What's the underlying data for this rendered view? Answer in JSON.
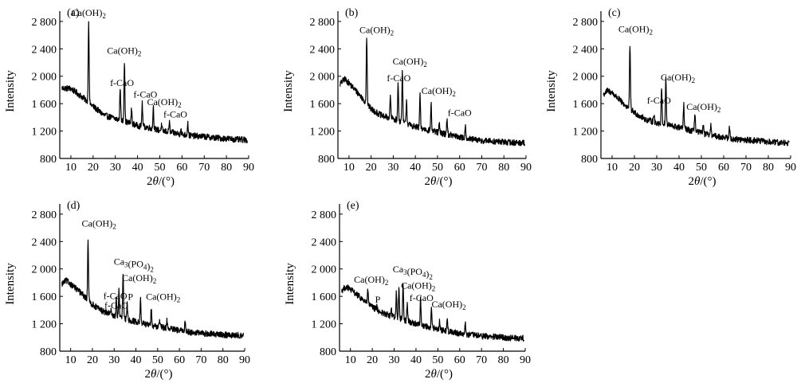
{
  "chart_data": [
    {
      "type": "line",
      "panel_label": "(a)",
      "xlabel_prefix": "2",
      "xlabel_theta": "θ",
      "xlabel_suffix": "/(°)",
      "ylabel": "Intensity",
      "xlim": [
        5,
        90
      ],
      "ylim": [
        800,
        2950
      ],
      "xticks": [
        10,
        20,
        30,
        40,
        50,
        60,
        70,
        80,
        90
      ],
      "yticks": [
        800,
        1200,
        1600,
        2000,
        2400,
        2800
      ],
      "ytick_labels": [
        "800",
        "1 200",
        "1 600",
        "2 000",
        "2 400",
        "2 800"
      ],
      "background": [
        [
          5,
          1830
        ],
        [
          10,
          1820
        ],
        [
          15,
          1700
        ],
        [
          20,
          1560
        ],
        [
          25,
          1430
        ],
        [
          30,
          1380
        ],
        [
          35,
          1330
        ],
        [
          40,
          1280
        ],
        [
          45,
          1250
        ],
        [
          50,
          1210
        ],
        [
          55,
          1180
        ],
        [
          60,
          1150
        ],
        [
          65,
          1130
        ],
        [
          70,
          1120
        ],
        [
          75,
          1100
        ],
        [
          80,
          1090
        ],
        [
          85,
          1075
        ],
        [
          90,
          1070
        ]
      ],
      "peaks": [
        [
          18.0,
          2820
        ],
        [
          28.7,
          1400
        ],
        [
          32.2,
          1850
        ],
        [
          34.1,
          2230
        ],
        [
          37.3,
          1520
        ],
        [
          42.1,
          1600
        ],
        [
          47.1,
          1560
        ],
        [
          50.8,
          1280
        ],
        [
          54.3,
          1330
        ],
        [
          59.5,
          1230
        ],
        [
          62.6,
          1330
        ]
      ],
      "annotations": [
        {
          "text": "Ca(OH)",
          "sub": "2",
          "x": 18.0,
          "y": 2880
        },
        {
          "text": "Ca(OH)",
          "sub": "2",
          "x": 34.0,
          "y": 2330
        },
        {
          "text": "f-CaO",
          "sub": "",
          "x": 33.0,
          "y": 1860
        },
        {
          "text": "f-CaO",
          "sub": "",
          "x": 43.5,
          "y": 1690
        },
        {
          "text": "Ca(OH)",
          "sub": "2",
          "x": 52.0,
          "y": 1580
        },
        {
          "text": "f-CaO",
          "sub": "",
          "x": 57.0,
          "y": 1400
        }
      ]
    },
    {
      "type": "line",
      "panel_label": "(b)",
      "xlabel_prefix": "2",
      "xlabel_theta": "θ",
      "xlabel_suffix": "/(°)",
      "ylabel": "Intensity",
      "xlim": [
        5,
        90
      ],
      "ylim": [
        800,
        2950
      ],
      "xticks": [
        10,
        20,
        30,
        40,
        50,
        60,
        70,
        80,
        90
      ],
      "yticks": [
        800,
        1200,
        1600,
        2000,
        2400,
        2800
      ],
      "ytick_labels": [
        "800",
        "1 200",
        "1 600",
        "2 000",
        "2 400",
        "2 800"
      ],
      "background": [
        [
          5,
          1850
        ],
        [
          8,
          1960
        ],
        [
          10,
          1900
        ],
        [
          15,
          1720
        ],
        [
          20,
          1520
        ],
        [
          25,
          1420
        ],
        [
          30,
          1380
        ],
        [
          35,
          1320
        ],
        [
          40,
          1260
        ],
        [
          45,
          1220
        ],
        [
          50,
          1180
        ],
        [
          55,
          1150
        ],
        [
          60,
          1110
        ],
        [
          65,
          1080
        ],
        [
          70,
          1060
        ],
        [
          75,
          1050
        ],
        [
          80,
          1040
        ],
        [
          85,
          1030
        ],
        [
          90,
          1030
        ]
      ],
      "peaks": [
        [
          18.0,
          2580
        ],
        [
          28.7,
          1700
        ],
        [
          32.2,
          1900
        ],
        [
          34.1,
          2060
        ],
        [
          36.0,
          1650
        ],
        [
          42.1,
          1720
        ],
        [
          47.1,
          1600
        ],
        [
          50.8,
          1300
        ],
        [
          54.3,
          1380
        ],
        [
          62.6,
          1300
        ]
      ],
      "annotations": [
        {
          "text": "Ca(OH)",
          "sub": "2",
          "x": 22.5,
          "y": 2630
        },
        {
          "text": "Ca(OH)",
          "sub": "2",
          "x": 37.5,
          "y": 2170
        },
        {
          "text": "f-CaO",
          "sub": "",
          "x": 32.5,
          "y": 1930
        },
        {
          "text": "Ca(OH)",
          "sub": "2",
          "x": 50.5,
          "y": 1740
        },
        {
          "text": "f-CaO",
          "sub": "",
          "x": 60.0,
          "y": 1420
        }
      ]
    },
    {
      "type": "line",
      "panel_label": "(c)",
      "xlabel_prefix": "2",
      "xlabel_theta": "θ",
      "xlabel_suffix": "/(°)",
      "ylabel": "Intensity",
      "xlim": [
        5,
        90
      ],
      "ylim": [
        800,
        2950
      ],
      "xticks": [
        10,
        20,
        30,
        40,
        50,
        60,
        70,
        80,
        90
      ],
      "yticks": [
        800,
        1200,
        1600,
        2000,
        2400,
        2800
      ],
      "ytick_labels": [
        "800",
        "1 200",
        "1 600",
        "2 000",
        "2 400",
        "2 800"
      ],
      "background": [
        [
          5,
          1700
        ],
        [
          8,
          1790
        ],
        [
          10,
          1760
        ],
        [
          15,
          1600
        ],
        [
          20,
          1470
        ],
        [
          25,
          1370
        ],
        [
          30,
          1320
        ],
        [
          35,
          1290
        ],
        [
          40,
          1250
        ],
        [
          45,
          1210
        ],
        [
          50,
          1170
        ],
        [
          55,
          1130
        ],
        [
          60,
          1110
        ],
        [
          65,
          1080
        ],
        [
          70,
          1070
        ],
        [
          75,
          1060
        ],
        [
          80,
          1040
        ],
        [
          85,
          1030
        ],
        [
          90,
          1030
        ]
      ],
      "peaks": [
        [
          18.0,
          2460
        ],
        [
          28.7,
          1450
        ],
        [
          32.2,
          1850
        ],
        [
          34.1,
          1990
        ],
        [
          42.1,
          1580
        ],
        [
          47.1,
          1480
        ],
        [
          50.8,
          1300
        ],
        [
          54.3,
          1280
        ],
        [
          62.6,
          1250
        ]
      ],
      "annotations": [
        {
          "text": "Ca(OH)",
          "sub": "2",
          "x": 20.5,
          "y": 2640
        },
        {
          "text": "f-CaO",
          "sub": "",
          "x": 31.0,
          "y": 1600
        },
        {
          "text": "Ca(OH)",
          "sub": "2",
          "x": 39.5,
          "y": 1940
        },
        {
          "text": "Ca(OH)",
          "sub": "2",
          "x": 51.0,
          "y": 1510
        }
      ]
    },
    {
      "type": "line",
      "panel_label": "(d)",
      "xlabel_prefix": "2",
      "xlabel_theta": "θ",
      "xlabel_suffix": "/(°)",
      "ylabel": "Intensity",
      "xlim": [
        5,
        90
      ],
      "ylim": [
        800,
        2950
      ],
      "xticks": [
        10,
        20,
        30,
        40,
        50,
        60,
        70,
        80,
        90
      ],
      "yticks": [
        800,
        1200,
        1600,
        2000,
        2400,
        2800
      ],
      "ytick_labels": [
        "800",
        "1 200",
        "1 600",
        "2 000",
        "2 400",
        "2 800"
      ],
      "background": [
        [
          5,
          1760
        ],
        [
          8,
          1830
        ],
        [
          10,
          1780
        ],
        [
          15,
          1640
        ],
        [
          20,
          1480
        ],
        [
          25,
          1380
        ],
        [
          30,
          1320
        ],
        [
          35,
          1270
        ],
        [
          40,
          1230
        ],
        [
          45,
          1190
        ],
        [
          50,
          1160
        ],
        [
          55,
          1130
        ],
        [
          60,
          1100
        ],
        [
          65,
          1080
        ],
        [
          70,
          1060
        ],
        [
          75,
          1050
        ],
        [
          80,
          1040
        ],
        [
          85,
          1030
        ],
        [
          90,
          1030
        ]
      ],
      "peaks": [
        [
          18.0,
          2450
        ],
        [
          28.7,
          1400
        ],
        [
          31.0,
          1550
        ],
        [
          32.2,
          1700
        ],
        [
          34.1,
          1940
        ],
        [
          36.0,
          1480
        ],
        [
          42.1,
          1550
        ],
        [
          47.1,
          1450
        ],
        [
          50.8,
          1250
        ],
        [
          54.3,
          1260
        ],
        [
          62.6,
          1230
        ]
      ],
      "annotations": [
        {
          "text": "Ca(OH)",
          "sub": "2",
          "x": 23.0,
          "y": 2620
        },
        {
          "text": "Ca",
          "sub": "3",
          "text2": "(PO",
          "sub2": "4",
          "text3": ")",
          "sub3": "2",
          "x": 39.0,
          "y": 2060
        },
        {
          "text": "Ca(OH)",
          "sub": "2",
          "x": 41.5,
          "y": 1820
        },
        {
          "text": "P",
          "sub": "",
          "x": 37.5,
          "y": 1550
        },
        {
          "text": "f-CaO",
          "sub": "",
          "x": 30.5,
          "y": 1560
        },
        {
          "text": "f-CaO",
          "sub": "",
          "x": 31.0,
          "y": 1420
        },
        {
          "text": "Ca(OH)",
          "sub": "2",
          "x": 52.5,
          "y": 1550
        }
      ]
    },
    {
      "type": "line",
      "panel_label": "(e)",
      "xlabel_prefix": "2",
      "xlabel_theta": "θ",
      "xlabel_suffix": "/(°)",
      "ylabel": "Intensity",
      "xlim": [
        5,
        90
      ],
      "ylim": [
        800,
        2950
      ],
      "xticks": [
        10,
        20,
        30,
        40,
        50,
        60,
        70,
        80,
        90
      ],
      "yticks": [
        800,
        1200,
        1600,
        2000,
        2400,
        2800
      ],
      "ytick_labels": [
        "800",
        "1 200",
        "1 600",
        "2 000",
        "2 400",
        "2 800"
      ],
      "background": [
        [
          5,
          1660
        ],
        [
          8,
          1740
        ],
        [
          10,
          1700
        ],
        [
          15,
          1570
        ],
        [
          20,
          1440
        ],
        [
          25,
          1350
        ],
        [
          30,
          1300
        ],
        [
          35,
          1250
        ],
        [
          40,
          1200
        ],
        [
          45,
          1160
        ],
        [
          50,
          1120
        ],
        [
          55,
          1090
        ],
        [
          60,
          1060
        ],
        [
          65,
          1040
        ],
        [
          70,
          1020
        ],
        [
          75,
          1010
        ],
        [
          80,
          1000
        ],
        [
          85,
          990
        ],
        [
          90,
          990
        ]
      ],
      "peaks": [
        [
          18.0,
          1700
        ],
        [
          22.0,
          1450
        ],
        [
          28.7,
          1400
        ],
        [
          31.0,
          1650
        ],
        [
          32.2,
          1750
        ],
        [
          34.1,
          1820
        ],
        [
          36.0,
          1500
        ],
        [
          42.1,
          1560
        ],
        [
          47.1,
          1420
        ],
        [
          50.8,
          1250
        ],
        [
          54.3,
          1250
        ],
        [
          62.6,
          1200
        ]
      ],
      "annotations": [
        {
          "text": "Ca(OH)",
          "sub": "2",
          "x": 19.5,
          "y": 1800
        },
        {
          "text": "P",
          "sub": "",
          "x": 22.5,
          "y": 1510
        },
        {
          "text": "Ca",
          "sub": "3",
          "text2": "(PO",
          "sub2": "4",
          "text3": ")",
          "sub3": "2",
          "x": 38.5,
          "y": 1950
        },
        {
          "text": "Ca(OH)",
          "sub": "2",
          "x": 41.0,
          "y": 1710
        },
        {
          "text": "f-CaO",
          "sub": "",
          "x": 42.5,
          "y": 1530
        },
        {
          "text": "Ca(OH)",
          "sub": "2",
          "x": 55.0,
          "y": 1440
        }
      ]
    }
  ]
}
